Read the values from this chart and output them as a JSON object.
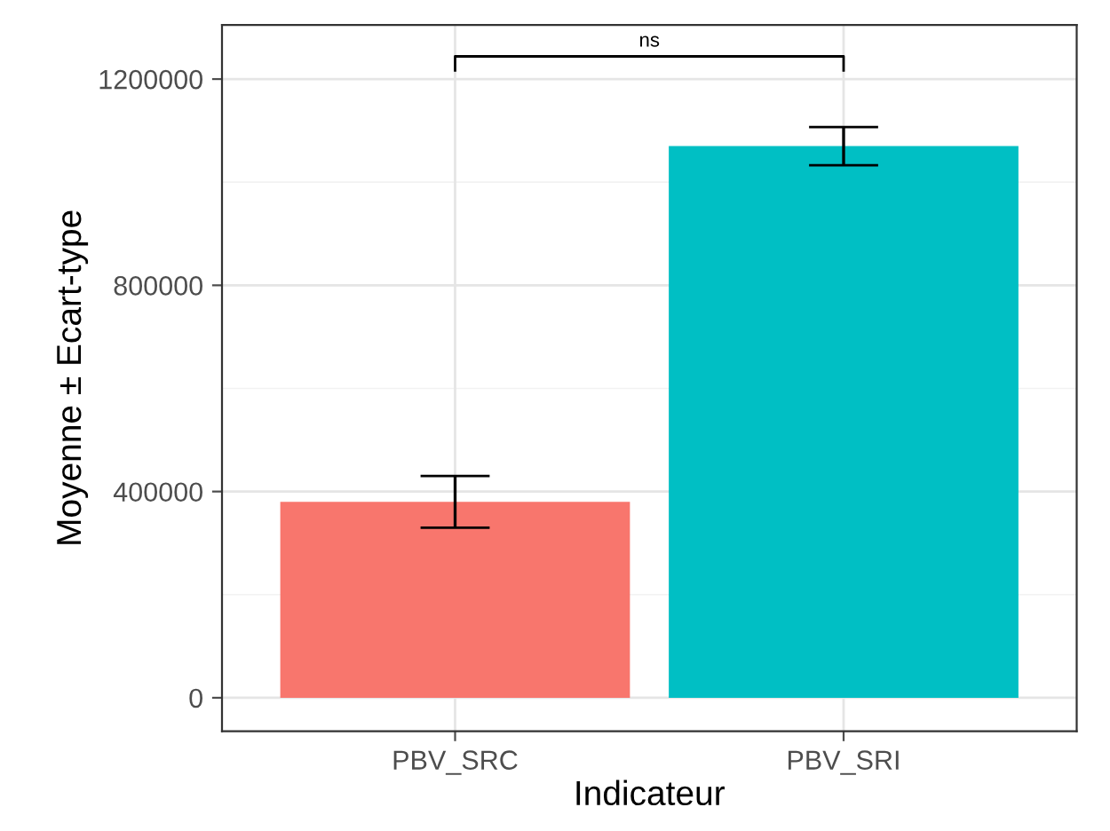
{
  "chart_data": {
    "type": "bar",
    "xlabel": "Indicateur",
    "ylabel": "Moyenne ± Ecart-type",
    "categories": [
      "PBV_SRC",
      "PBV_SRI"
    ],
    "values": [
      380000,
      1070000
    ],
    "colors": [
      "#f8766d",
      "#00bfc4"
    ],
    "errors": [
      50000,
      37000
    ],
    "ylim": [
      -65000,
      1305000
    ],
    "yticks": [
      0,
      400000,
      800000,
      1200000
    ],
    "grid": true,
    "annotations": [
      "ns"
    ]
  }
}
